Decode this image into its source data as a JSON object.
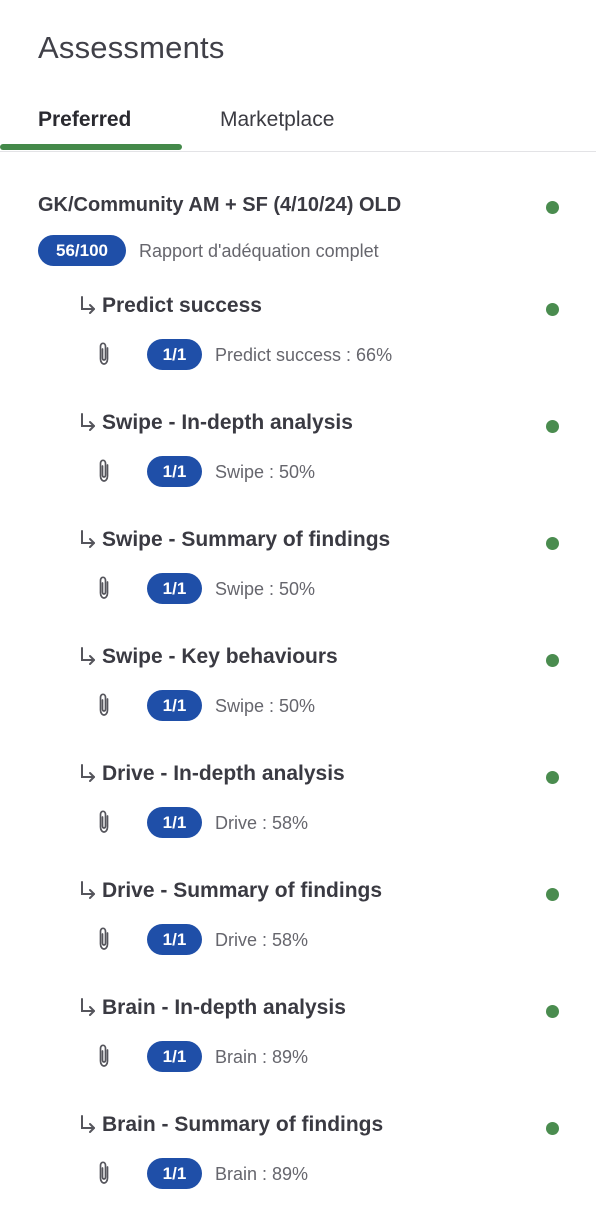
{
  "header": {
    "title": "Assessments"
  },
  "tabs": [
    {
      "label": "Preferred",
      "active": true
    },
    {
      "label": "Marketplace",
      "active": false
    }
  ],
  "colors": {
    "accent_green": "#44894a",
    "status_green": "#4a8c4f",
    "pill_blue": "#1f4fa8"
  },
  "assessment": {
    "title": "GK/Community AM + SF (4/10/24) OLD",
    "score": "56/100",
    "description": "Rapport d'adéquation complet",
    "status": "complete",
    "children": [
      {
        "title": "Predict success",
        "count": "1/1",
        "detail": "Predict success : 66%"
      },
      {
        "title": "Swipe - In-depth analysis",
        "count": "1/1",
        "detail": "Swipe : 50%"
      },
      {
        "title": "Swipe - Summary of findings",
        "count": "1/1",
        "detail": "Swipe : 50%"
      },
      {
        "title": "Swipe - Key behaviours",
        "count": "1/1",
        "detail": "Swipe : 50%"
      },
      {
        "title": "Drive - In-depth analysis",
        "count": "1/1",
        "detail": "Drive : 58%"
      },
      {
        "title": "Drive - Summary of findings",
        "count": "1/1",
        "detail": "Drive : 58%"
      },
      {
        "title": "Brain - In-depth analysis",
        "count": "1/1",
        "detail": "Brain : 89%"
      },
      {
        "title": "Brain - Summary of findings",
        "count": "1/1",
        "detail": "Brain : 89%"
      }
    ]
  }
}
